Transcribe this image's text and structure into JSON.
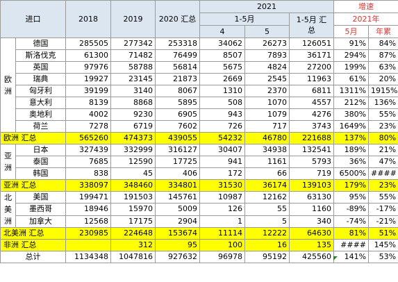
{
  "header": {
    "col_label": "进口",
    "y2018": "2018",
    "y2019": "2019",
    "y2020": "2020 汇总",
    "y2021": "2021",
    "jan_may": "1-5月",
    "m4": "4",
    "m5": "5",
    "jan_may_total": "1-5月 汇总",
    "growth": "增速",
    "growth_2021": "2021年",
    "growth_may": "5月",
    "growth_ytd": "年累"
  },
  "europe": {
    "region": "欧洲",
    "rows": [
      {
        "country": "德国",
        "c2018": "285505",
        "c2019": "277342",
        "c2020": "253318",
        "m4": "34062",
        "m5": "26273",
        "total": "126051",
        "g5": "91%",
        "gy": "84%"
      },
      {
        "country": "斯洛伐克",
        "c2018": "61300",
        "c2019": "71482",
        "c2020": "76499",
        "m4": "8507",
        "m5": "7893",
        "total": "36171",
        "g5": "294%",
        "gy": "87%"
      },
      {
        "country": "英国",
        "c2018": "97976",
        "c2019": "58788",
        "c2020": "56814",
        "m4": "5675",
        "m5": "4824",
        "total": "27200",
        "g5": "199%",
        "gy": "63%"
      },
      {
        "country": "瑞典",
        "c2018": "19927",
        "c2019": "23145",
        "c2020": "21873",
        "m4": "2669",
        "m5": "2545",
        "total": "11963",
        "g5": "61%",
        "gy": "20%"
      },
      {
        "country": "匈牙利",
        "c2018": "39199",
        "c2019": "3140",
        "c2020": "8067",
        "m4": "1310",
        "m5": "2370",
        "total": "6811",
        "g5": "1311%",
        "gy": "1915%"
      },
      {
        "country": "意大利",
        "c2018": "8139",
        "c2019": "8868",
        "c2020": "5895",
        "m4": "508",
        "m5": "1070",
        "total": "4557",
        "g5": "212%",
        "gy": "136%"
      },
      {
        "country": "奥地利",
        "c2018": "4002",
        "c2019": "9230",
        "c2020": "6905",
        "m4": "943",
        "m5": "1079",
        "total": "4276",
        "g5": "380%",
        "gy": "55%"
      },
      {
        "country": "荷兰",
        "c2018": "7278",
        "c2019": "6719",
        "c2020": "7602",
        "m4": "726",
        "m5": "717",
        "total": "3743",
        "g5": "1649%",
        "gy": "23%"
      }
    ],
    "subtotal": {
      "label": "欧洲 汇总",
      "c2018": "565260",
      "c2019": "474373",
      "c2020": "439055",
      "m4": "54232",
      "m5": "46780",
      "total": "221688",
      "g5": "137%",
      "gy": "80%"
    }
  },
  "asia": {
    "region": "亚洲",
    "rows": [
      {
        "country": "日本",
        "c2018": "327439",
        "c2019": "332999",
        "c2020": "316127",
        "m4": "30407",
        "m5": "34938",
        "total": "132541",
        "g5": "189%",
        "gy": "21%"
      },
      {
        "country": "泰国",
        "c2018": "7685",
        "c2019": "12590",
        "c2020": "17725",
        "m4": "941",
        "m5": "1161",
        "total": "5793",
        "g5": "36%",
        "gy": "47%"
      },
      {
        "country": "韩国",
        "c2018": "838",
        "c2019": "45",
        "c2020": "406",
        "m4": "172",
        "m5": "66",
        "total": "719",
        "g5": "6500%",
        "gy": "####"
      }
    ],
    "subtotal": {
      "label": "亚洲 汇总",
      "c2018": "338097",
      "c2019": "348460",
      "c2020": "334801",
      "m4": "31530",
      "m5": "36174",
      "total": "139103",
      "g5": "179%",
      "gy": "23%"
    }
  },
  "north_america": {
    "region": "北美洲",
    "rows": [
      {
        "country": "美国",
        "c2018": "199471",
        "c2019": "191503",
        "c2020": "145761",
        "m4": "10987",
        "m5": "12162",
        "total": "63130",
        "g5": "95%",
        "gy": "55%"
      },
      {
        "country": "墨西哥",
        "c2018": "18946",
        "c2019": "15970",
        "c2020": "5009",
        "m4": "126",
        "m5": "55",
        "total": "1160",
        "g5": "-89%",
        "gy": "-17%"
      },
      {
        "country": "加拿大",
        "c2018": "12568",
        "c2019": "17175",
        "c2020": "2904",
        "m4": "1",
        "m5": "5",
        "total": "340",
        "g5": "-74%",
        "gy": "-21%"
      }
    ],
    "subtotal": {
      "label": "北美洲 汇总",
      "c2018": "230985",
      "c2019": "224648",
      "c2020": "153674",
      "m4": "11114",
      "m5": "12222",
      "total": "64630",
      "g5": "81%",
      "gy": "51%"
    }
  },
  "africa": {
    "subtotal": {
      "label": "非洲 汇总",
      "c2018": "",
      "c2019": "312",
      "c2020": "95",
      "m4": "100",
      "m5": "16",
      "total": "135",
      "g5": "####",
      "gy": "145%"
    }
  },
  "grand_total": {
    "label": "总计",
    "c2018": "1134348",
    "c2019": "1047816",
    "c2020": "927632",
    "m4": "96978",
    "m5": "95192",
    "total": "425560",
    "g5": "141%",
    "gy": "53%"
  },
  "colors": {
    "header_bg": "#dce6f1",
    "subtotal_bg": "#ffff00",
    "red_text": "#e03030",
    "marker": "#2e7d32"
  }
}
